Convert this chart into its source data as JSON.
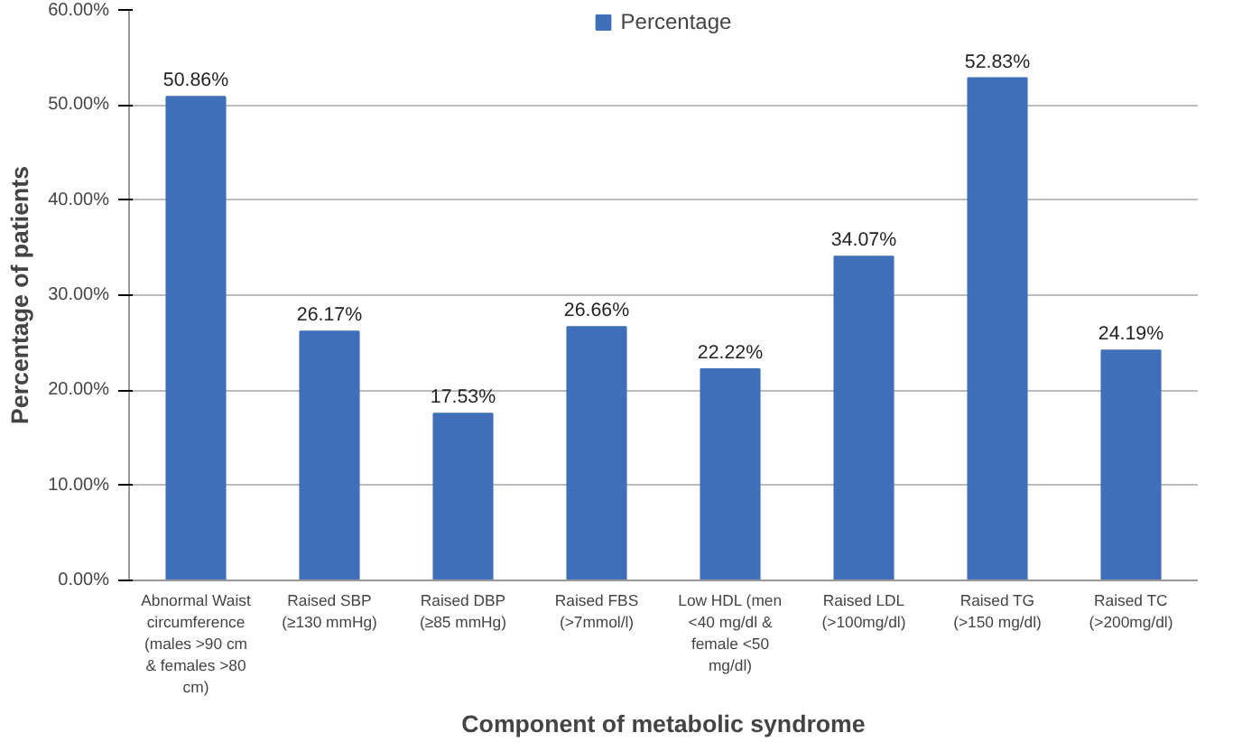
{
  "chart_data": {
    "type": "bar",
    "xlabel": "Component of metabolic syndrome",
    "ylabel": "Percentage of patients",
    "categories": [
      "Abnormal Waist circumference (males >90 cm & females >80 cm)",
      "Raised SBP (≥130 mmHg)",
      "Raised DBP (≥85 mmHg)",
      "Raised FBS (>7mmol/l)",
      "Low HDL (men <40 mg/dl & female <50 mg/dl)",
      "Raised LDL (>100mg/dl)",
      "Raised TG (>150 mg/dl)",
      "Raised TC (>200mg/dl)"
    ],
    "series": [
      {
        "name": "Percentage",
        "color": "#3f6fb8",
        "values": [
          50.86,
          26.17,
          17.53,
          26.66,
          22.22,
          34.07,
          52.83,
          24.19
        ],
        "value_labels": [
          "50.86%",
          "26.17%",
          "17.53%",
          "26.66%",
          "22.22%",
          "34.07%",
          "52.83%",
          "24.19%"
        ]
      }
    ],
    "ylim": [
      0,
      60
    ],
    "yticks": [
      {
        "value": 0,
        "label": "0.00%"
      },
      {
        "value": 10,
        "label": "10.00%"
      },
      {
        "value": 20,
        "label": "20.00%"
      },
      {
        "value": 30,
        "label": "30.00%"
      },
      {
        "value": 40,
        "label": "40.00%"
      },
      {
        "value": 50,
        "label": "50.00%"
      },
      {
        "value": 60,
        "label": "60.00%"
      }
    ],
    "grid": "y",
    "legend": "top"
  }
}
